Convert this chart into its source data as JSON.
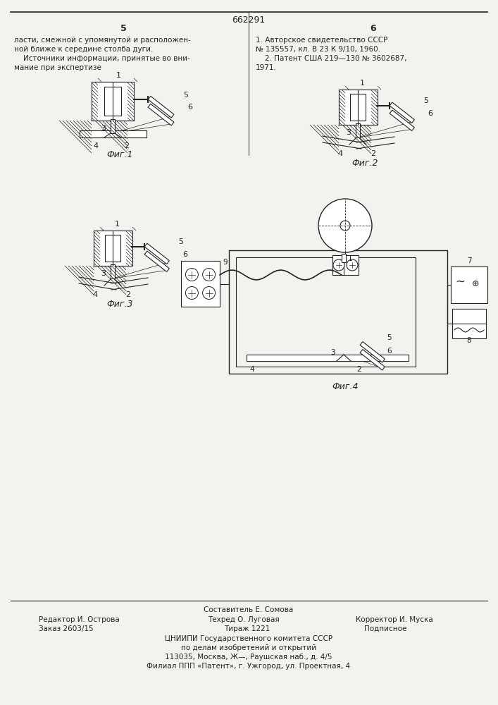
{
  "patent_number": "662291",
  "page_left": "5",
  "page_right": "6",
  "text_left_lines": [
    "ласти, смежной с упомянутой и расположен-",
    "ной ближе к середине столба дуги.",
    "    Источники информации, принятые во вни-",
    "мание при экспертизе"
  ],
  "text_right_lines": [
    "1. Авторское свидетельство СССР",
    "№ 135557, кл. В 23 К 9/10, 1960.",
    "    2. Патент США 219—130 № 3602687,",
    "1971."
  ],
  "fig1_label": "Фиг.1",
  "fig2_label": "Фиг.2",
  "fig3_label": "Фиг.3",
  "fig4_label": "Фиг.4",
  "footer_line1": "Составитель Е. Сомова",
  "footer_left1": "Редактор И. Острова",
  "footer_mid1": "Техред О. Луговая",
  "footer_right1": "Корректор И. Муска",
  "footer_left2": "Заказ 2603/15",
  "footer_mid2": "Тираж 1221",
  "footer_right2": "Подписное",
  "footer_line4": "ЦНИИПИ Государственного комитета СССР",
  "footer_line5": "по делам изобретений и открытий",
  "footer_line6": "113035, Москва, Ж—̵, Раушская наб., д. 4/5",
  "footer_line7": "Филиал ППП «Патент», г. Ужгород, ул. Проектная, 4",
  "bg_color": "#f2f2ee",
  "line_color": "#222222"
}
